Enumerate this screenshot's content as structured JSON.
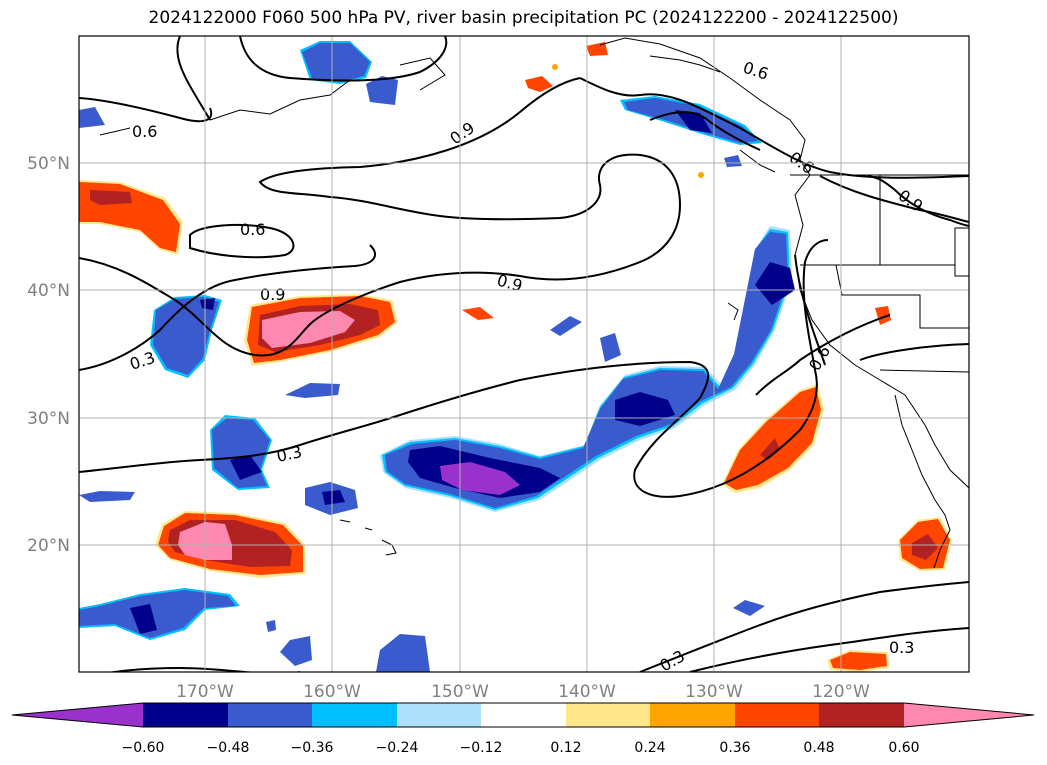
{
  "title": "2024122000 F060 500 hPa PV, river basin precipitation PC (2024122200 - 2024122500)",
  "axes": {
    "lat_labels": [
      "50°N",
      "40°N",
      "30°N",
      "20°N"
    ],
    "lon_labels": [
      "170°W",
      "160°W",
      "150°W",
      "140°W",
      "130°W",
      "120°W"
    ]
  },
  "contour_labels": [
    "0.6",
    "0.6",
    "0.6",
    "0.6",
    "0.9",
    "0.9",
    "0.9",
    "0.9",
    "0.3",
    "0.3",
    "0.3",
    "0.3",
    "0.6"
  ],
  "colorbar": {
    "ticks": [
      "−0.60",
      "−0.48",
      "−0.36",
      "−0.24",
      "−0.12",
      "0.12",
      "0.24",
      "0.36",
      "0.48",
      "0.60"
    ],
    "colors": [
      "#9932CC",
      "#00008B",
      "#3A5BCD",
      "#00BFFF",
      "#ADE1FA",
      "#FFFFFF",
      "#FFE88C",
      "#FFA500",
      "#FF4500",
      "#B22222",
      "#FF88B0"
    ]
  },
  "palette": {
    "pink": "#FF88B0",
    "darkred": "#B22222",
    "orangered": "#FF4500",
    "orange": "#FFA500",
    "yellow": "#FFE88C",
    "lightblue": "#ADE1FA",
    "skyblue": "#00BFFF",
    "blue": "#3A5BCD",
    "navy": "#00008B",
    "purple": "#9932CC"
  }
}
